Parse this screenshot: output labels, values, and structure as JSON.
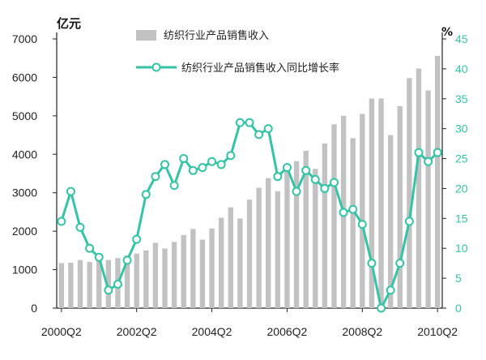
{
  "chart_data": {
    "type": "bar",
    "title": "",
    "left_axis": {
      "unit": "亿元",
      "ylim": [
        0,
        7000
      ],
      "ticks": [
        "0",
        "1000",
        "2000",
        "3000",
        "4000",
        "5000",
        "6000",
        "7000"
      ]
    },
    "right_axis": {
      "unit": "%",
      "ylim": [
        0,
        45
      ],
      "ticks": [
        "0",
        "5",
        "10",
        "15",
        "20",
        "25",
        "30",
        "35",
        "40",
        "45"
      ]
    },
    "x_tick_labels": [
      "2000Q2",
      "2002Q2",
      "2004Q2",
      "2006Q2",
      "2008Q2",
      "2010Q2"
    ],
    "legend_position": "top",
    "grid": false,
    "categories": [
      "2000Q2",
      "2000Q3",
      "2000Q4",
      "2001Q1",
      "2001Q2",
      "2001Q3",
      "2001Q4",
      "2002Q1",
      "2002Q2",
      "2002Q3",
      "2002Q4",
      "2003Q1",
      "2003Q2",
      "2003Q3",
      "2003Q4",
      "2004Q1",
      "2004Q2",
      "2004Q3",
      "2004Q4",
      "2005Q1",
      "2005Q2",
      "2005Q3",
      "2005Q4",
      "2006Q1",
      "2006Q2",
      "2006Q3",
      "2006Q4",
      "2007Q1",
      "2007Q2",
      "2007Q3",
      "2007Q4",
      "2008Q1",
      "2008Q2",
      "2008Q3",
      "2008Q4",
      "2009Q1",
      "2009Q2",
      "2009Q3",
      "2009Q4",
      "2010Q1",
      "2010Q2"
    ],
    "series": [
      {
        "name": "纺织行业产品销售收入",
        "type": "bar",
        "axis": "left",
        "color": "#c2c2c2",
        "values": [
          1170,
          1180,
          1250,
          1200,
          1250,
          1250,
          1300,
          1370,
          1420,
          1500,
          1700,
          1550,
          1720,
          1900,
          2060,
          1780,
          2070,
          2350,
          2620,
          2330,
          2820,
          3130,
          3380,
          3040,
          3640,
          3820,
          4090,
          3620,
          4280,
          4780,
          5000,
          4420,
          5050,
          5450,
          5450,
          4500,
          5250,
          5980,
          6230,
          5660,
          6560
        ]
      },
      {
        "name": "纺织行业产品销售收入同比增长率",
        "type": "line",
        "axis": "right",
        "color": "#33c4a6",
        "values": [
          14.5,
          19.5,
          13.5,
          10,
          8.5,
          3,
          4,
          8,
          11.5,
          19,
          22,
          24,
          20.5,
          25,
          23,
          23.5,
          24.5,
          24,
          25.5,
          31,
          31,
          29,
          30,
          22,
          23.5,
          19.5,
          23,
          21.5,
          20,
          21,
          16,
          16.5,
          14,
          7.5,
          0,
          3,
          7.5,
          14.5,
          26,
          24.5,
          26
        ]
      }
    ]
  }
}
